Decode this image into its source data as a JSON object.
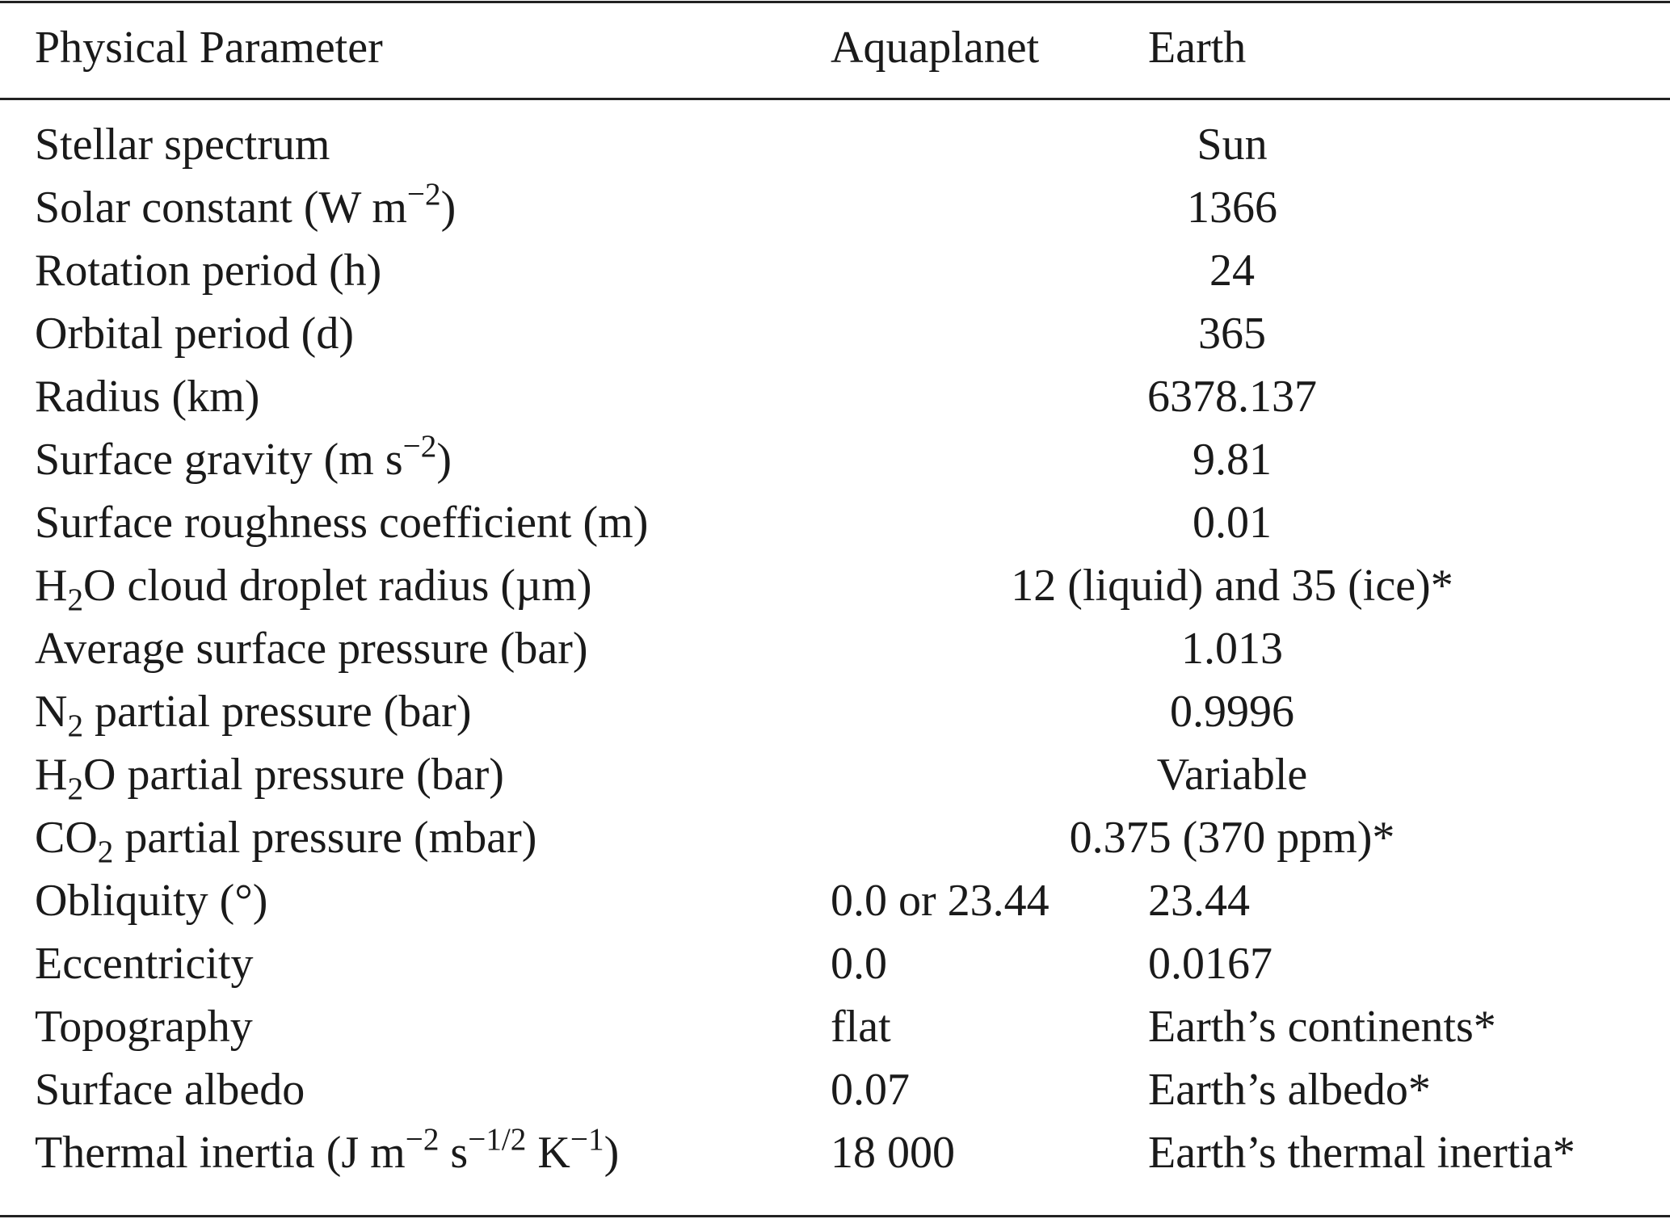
{
  "table": {
    "header": [
      "Physical Parameter",
      "Aquaplanet",
      "Earth"
    ],
    "rows": [
      {
        "label": "Stellar spectrum",
        "both": "Sun"
      },
      {
        "label": [
          {
            "text": "Solar constant (W m"
          },
          {
            "sup": "−2"
          },
          {
            "text": ")"
          }
        ],
        "both": "1366"
      },
      {
        "label": "Rotation period (h)",
        "both": "24"
      },
      {
        "label": "Orbital period (d)",
        "both": "365"
      },
      {
        "label": "Radius (km)",
        "both": "6378.137"
      },
      {
        "label": [
          {
            "text": "Surface gravity (m s"
          },
          {
            "sup": "−2"
          },
          {
            "text": ")"
          }
        ],
        "both": "9.81"
      },
      {
        "label": "Surface roughness coefficient (m)",
        "both": "0.01"
      },
      {
        "label": [
          {
            "text": "H"
          },
          {
            "sub": "2"
          },
          {
            "text": "O cloud droplet radius (µm)"
          }
        ],
        "both": "12 (liquid) and 35 (ice)*"
      },
      {
        "label": "Average surface pressure (bar)",
        "both": "1.013"
      },
      {
        "label": [
          {
            "text": "N"
          },
          {
            "sub": "2"
          },
          {
            "text": " partial pressure (bar)"
          }
        ],
        "both": "0.9996"
      },
      {
        "label": [
          {
            "text": "H"
          },
          {
            "sub": "2"
          },
          {
            "text": "O partial pressure (bar)"
          }
        ],
        "both": "Variable"
      },
      {
        "label": [
          {
            "text": "CO"
          },
          {
            "sub": "2"
          },
          {
            "text": " partial pressure (mbar)"
          }
        ],
        "both": "0.375 (370 ppm)*"
      },
      {
        "label": "Obliquity (°)",
        "aquaplanet": "0.0 or 23.44",
        "earth": "23.44"
      },
      {
        "label": "Eccentricity",
        "aquaplanet": "0.0",
        "earth": "0.0167"
      },
      {
        "label": "Topography",
        "aquaplanet": "flat",
        "earth": "Earth’s continents*"
      },
      {
        "label": "Surface albedo",
        "aquaplanet": "0.07",
        "earth": "Earth’s albedo*"
      },
      {
        "label": [
          {
            "text": "Thermal inertia (J m"
          },
          {
            "sup": "−2"
          },
          {
            "text": " s"
          },
          {
            "sup": "−1/2"
          },
          {
            "text": " K"
          },
          {
            "sup": "−1"
          },
          {
            "text": ")"
          }
        ],
        "aquaplanet": "18 000",
        "earth": "Earth’s thermal inertia*"
      }
    ]
  }
}
